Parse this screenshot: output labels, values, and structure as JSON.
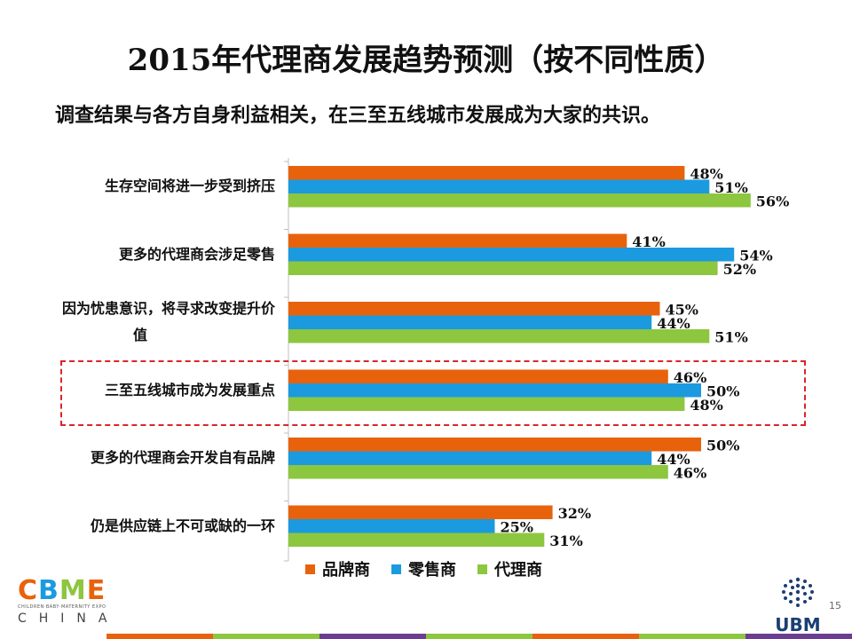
{
  "title": "2015年代理商发展趋势预测（按不同性质）",
  "subtitle": "调查结果与各方自身利益相关，在三至五线城市发展成为大家的共识。",
  "chart_data": {
    "type": "bar",
    "orientation": "horizontal",
    "categories": [
      "生存空间将进一步受到挤压",
      "更多的代理商会涉足零售",
      "因为忧患意识，将寻求改变提升价值",
      "三至五线城市成为发展重点",
      "更多的代理商会开发自有品牌",
      "仍是供应链上不可或缺的一环"
    ],
    "category_labels": [
      [
        "生存空间将进一步受到挤压"
      ],
      [
        "更多的代理商会涉足零售"
      ],
      [
        "因为忧患意识，将寻求改变提升价",
        "值"
      ],
      [
        "三至五线城市成为发展重点"
      ],
      [
        "更多的代理商会开发自有品牌"
      ],
      [
        "仍是供应链上不可或缺的一环"
      ]
    ],
    "series": [
      {
        "name": "品牌商",
        "color": "#e8620c",
        "values": [
          48,
          41,
          45,
          46,
          50,
          32
        ],
        "labels": [
          "48%",
          "41%",
          "45%",
          "46%",
          "50%",
          "32%"
        ]
      },
      {
        "name": "零售商",
        "color": "#1b9ae0",
        "values": [
          51,
          54,
          44,
          50,
          44,
          25
        ],
        "labels": [
          "51%",
          "54%",
          "44%",
          "50%",
          "44%",
          "25%"
        ]
      },
      {
        "name": "代理商",
        "color": "#8dc63f",
        "values": [
          56,
          52,
          51,
          48,
          46,
          31
        ],
        "labels": [
          "56%",
          "52%",
          "51%",
          "48%",
          "46%",
          "31%"
        ]
      }
    ],
    "xlim": [
      0,
      60
    ],
    "highlighted_category": "三至五线城市成为发展重点",
    "legend": "bottom",
    "grid": false
  },
  "branding": {
    "cbme_logo": "CBME",
    "cbme_sub": "CHILDREN·BABY·MATERNITY EXPO",
    "cbme_region": "CHINA",
    "ubm_logo": "UBM"
  },
  "page_number": "15",
  "footer_colors": [
    "#e8620c",
    "#8dc63f",
    "#6a3d92",
    "#8dc63f",
    "#e8620c",
    "#8dc63f",
    "#6a3d92"
  ]
}
